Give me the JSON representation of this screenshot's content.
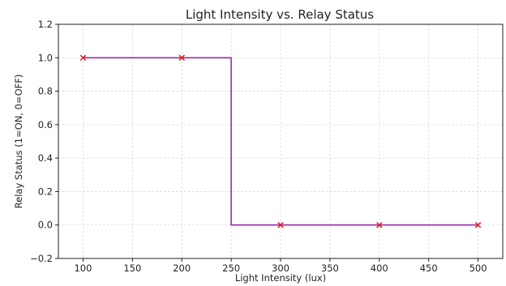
{
  "chart_data": {
    "type": "line",
    "title": "Light Intensity vs. Relay Status",
    "xlabel": "Light Intensity (lux)",
    "ylabel": "Relay Status (1=ON, 0=OFF)",
    "xlim": [
      75,
      525
    ],
    "ylim": [
      -0.2,
      1.2
    ],
    "xticks": [
      100,
      150,
      200,
      250,
      300,
      350,
      400,
      450,
      500
    ],
    "yticks": [
      -0.2,
      0.0,
      0.2,
      0.4,
      0.6,
      0.8,
      1.0,
      1.2
    ],
    "yticklabels": [
      "−0.2",
      "0.0",
      "0.2",
      "0.4",
      "0.6",
      "0.8",
      "1.0",
      "1.2"
    ],
    "grid": true,
    "series": [
      {
        "style": "step",
        "color": "#9c27b0",
        "x": [
          100,
          250,
          250,
          500
        ],
        "y": [
          1,
          1,
          0,
          0
        ]
      },
      {
        "style": "markers",
        "marker": "x",
        "color": "#e0201b",
        "x": [
          100,
          200,
          300,
          400,
          500
        ],
        "y": [
          1,
          1,
          0,
          0,
          0
        ]
      }
    ]
  }
}
